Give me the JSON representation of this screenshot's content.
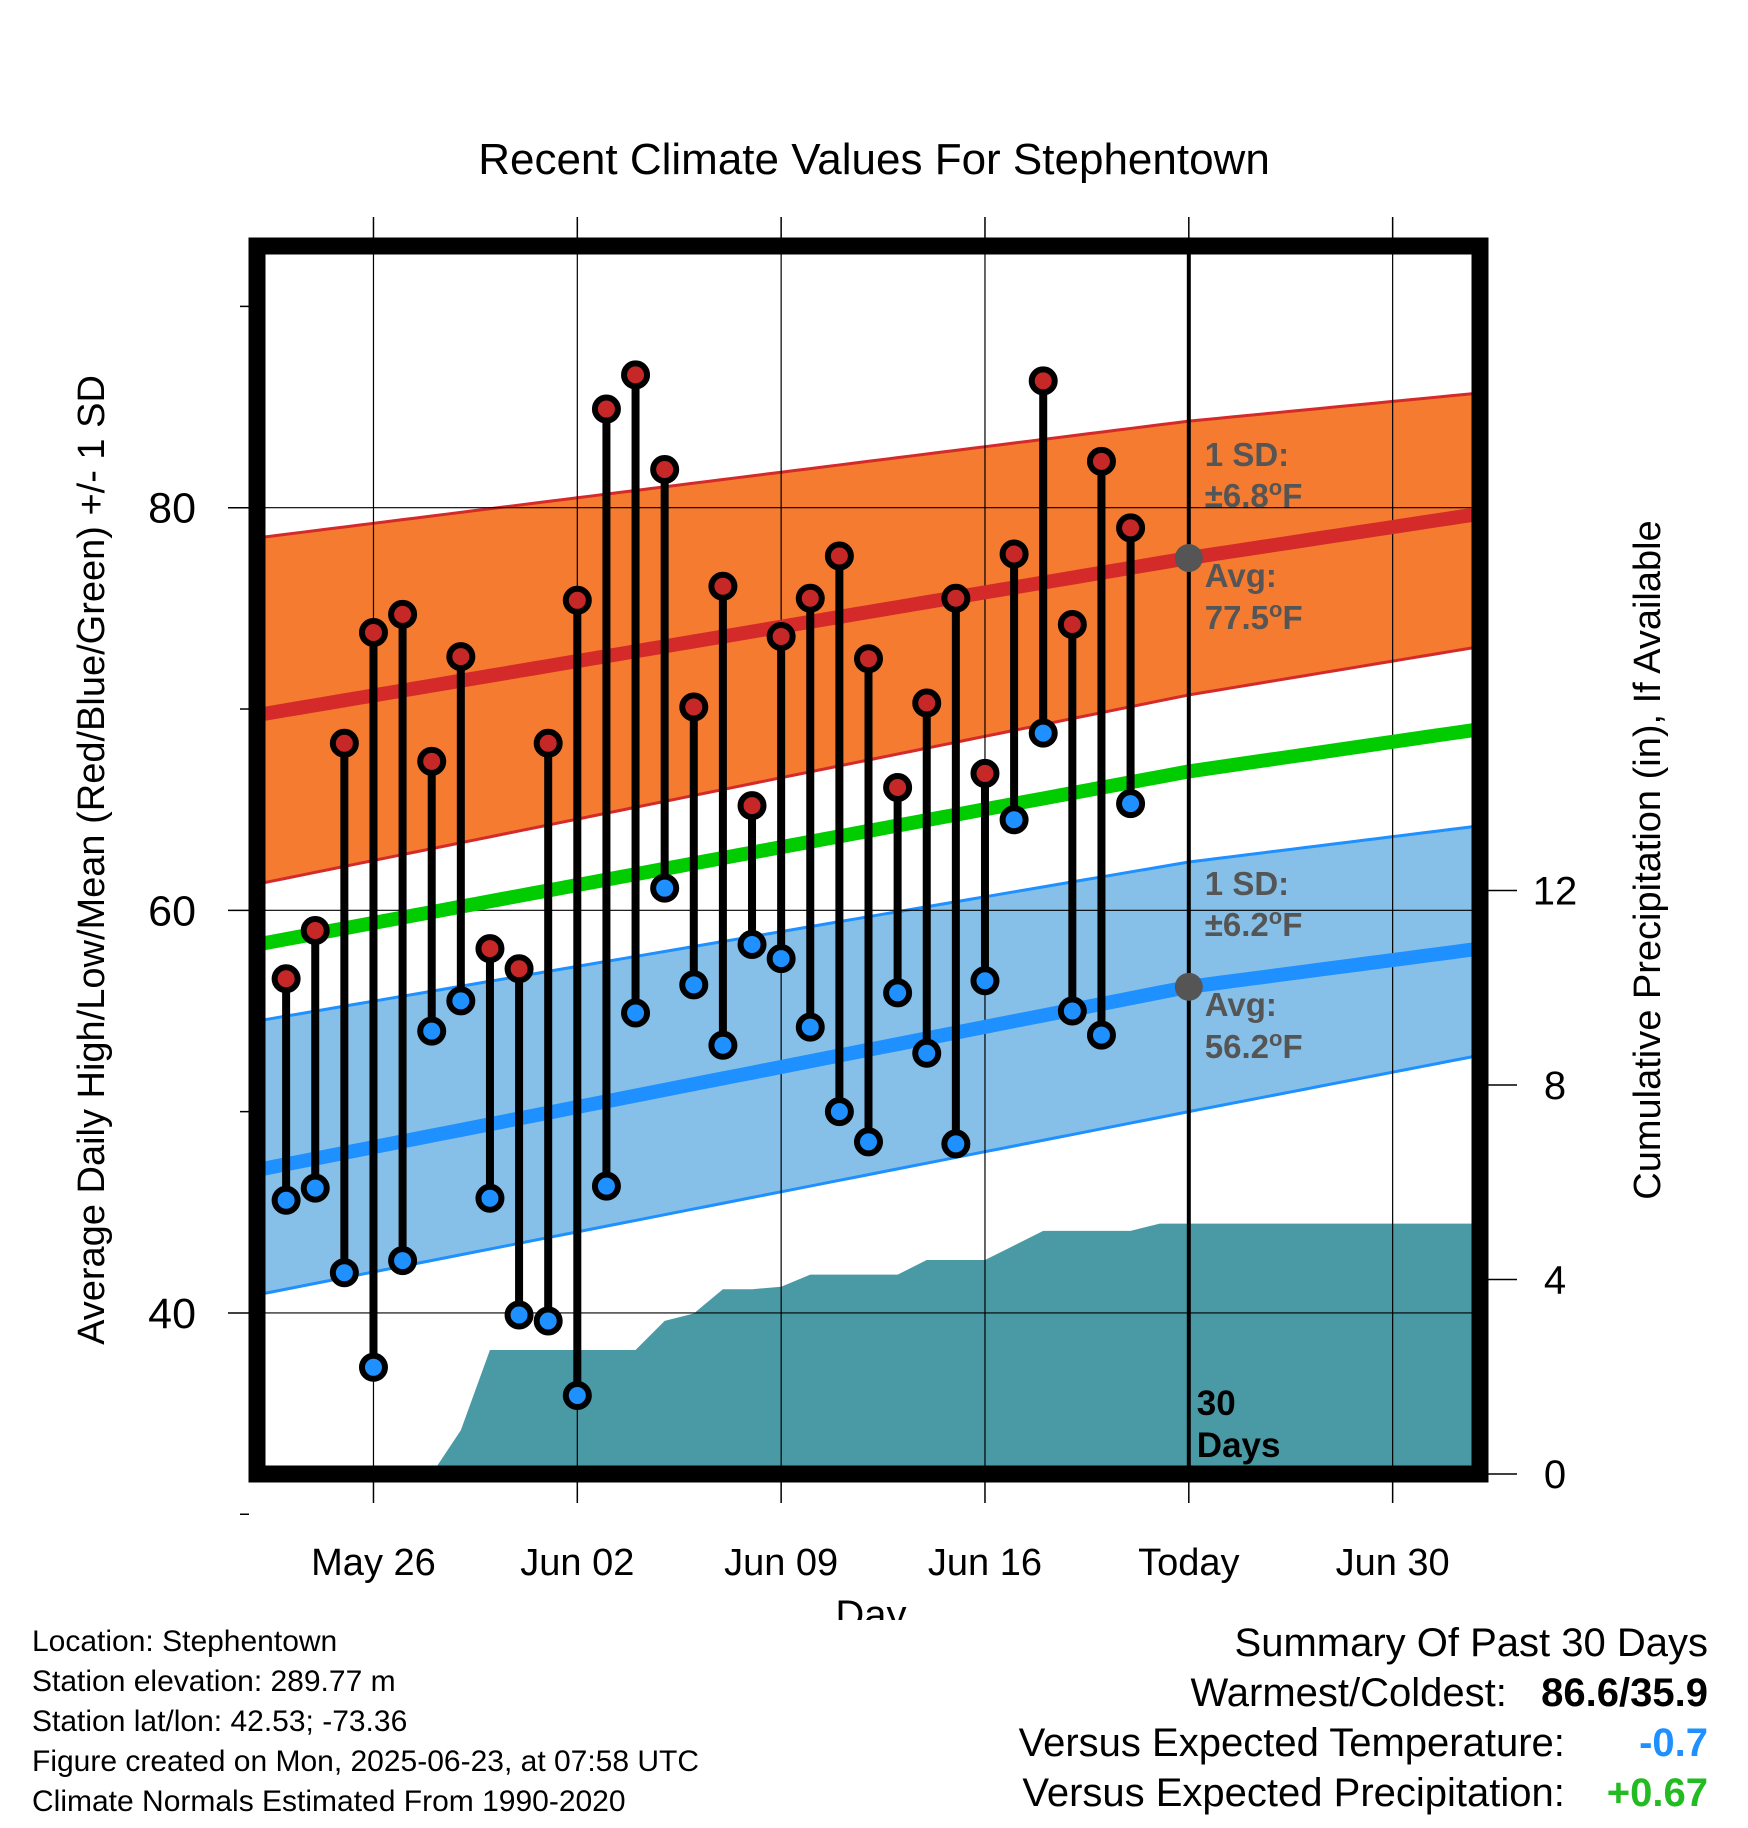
{
  "chart_data": {
    "type": "line",
    "title": "Recent Climate Values For Stephentown",
    "xlabel": "Day",
    "ylabel": "Average Daily High/Low/Mean (Red/Blue/Green) +/- 1 SD",
    "y2label": "Cumulative Precipitation (in), If Available",
    "ylim": [
      32,
      93
    ],
    "y2lim": [
      0,
      30
    ],
    "xlim": [
      "2025-05-22",
      "2025-07-03"
    ],
    "x_ticks": [
      {
        "date": "2025-05-26",
        "label": "May 26"
      },
      {
        "date": "2025-06-02",
        "label": "Jun 02"
      },
      {
        "date": "2025-06-09",
        "label": "Jun 09"
      },
      {
        "date": "2025-06-16",
        "label": "Jun 16"
      },
      {
        "date": "2025-06-23",
        "label": "Today"
      },
      {
        "date": "2025-06-30",
        "label": "Jun 30"
      }
    ],
    "y_ticks": [
      {
        "value": 40,
        "label": "40"
      },
      {
        "value": 60,
        "label": "60"
      },
      {
        "value": 80,
        "label": "80"
      }
    ],
    "y_minor_ticks": [
      30,
      50,
      70,
      90
    ],
    "y2_ticks": [
      {
        "value": 0,
        "label": "0"
      },
      {
        "value": 4,
        "label": "4"
      },
      {
        "value": 8,
        "label": "8"
      },
      {
        "value": 12,
        "label": "12"
      }
    ],
    "grid": true,
    "normals": {
      "dates": [
        "2025-05-22",
        "2025-06-23",
        "2025-07-03"
      ],
      "high_mean": [
        69.7,
        77.5,
        79.7
      ],
      "high_upper": [
        78.5,
        84.3,
        85.7
      ],
      "high_lower": [
        61.3,
        70.7,
        73.1
      ],
      "low_mean": [
        47.1,
        56.2,
        58.1
      ],
      "low_upper": [
        54.5,
        62.4,
        64.2
      ],
      "low_lower": [
        40.9,
        50.0,
        52.8
      ],
      "daily_mean": [
        58.3,
        66.9,
        69.0
      ]
    },
    "series": [
      {
        "name": "High",
        "dates": [
          "2025-05-23",
          "2025-05-24",
          "2025-05-25",
          "2025-05-26",
          "2025-05-27",
          "2025-05-28",
          "2025-05-29",
          "2025-05-30",
          "2025-05-31",
          "2025-06-01",
          "2025-06-02",
          "2025-06-03",
          "2025-06-04",
          "2025-06-05",
          "2025-06-06",
          "2025-06-07",
          "2025-06-08",
          "2025-06-09",
          "2025-06-10",
          "2025-06-11",
          "2025-06-12",
          "2025-06-13",
          "2025-06-14",
          "2025-06-15",
          "2025-06-16",
          "2025-06-17",
          "2025-06-18",
          "2025-06-19",
          "2025-06-20",
          "2025-06-21",
          "2025-06-22"
        ],
        "values": [
          56.6,
          59.0,
          68.3,
          73.8,
          74.7,
          67.4,
          72.6,
          58.1,
          57.1,
          68.3,
          75.4,
          84.9,
          86.6,
          81.9,
          70.1,
          76.1,
          65.2,
          73.6,
          75.5,
          77.6,
          72.5,
          66.1,
          70.3,
          75.5,
          66.8,
          77.7,
          86.3,
          74.2,
          82.3,
          79.0,
          null
        ],
        "color": "#c62828"
      },
      {
        "name": "Low",
        "dates": [
          "2025-05-23",
          "2025-05-24",
          "2025-05-25",
          "2025-05-26",
          "2025-05-27",
          "2025-05-28",
          "2025-05-29",
          "2025-05-30",
          "2025-05-31",
          "2025-06-01",
          "2025-06-02",
          "2025-06-03",
          "2025-06-04",
          "2025-06-05",
          "2025-06-06",
          "2025-06-07",
          "2025-06-08",
          "2025-06-09",
          "2025-06-10",
          "2025-06-11",
          "2025-06-12",
          "2025-06-13",
          "2025-06-14",
          "2025-06-15",
          "2025-06-16",
          "2025-06-17",
          "2025-06-18",
          "2025-06-19",
          "2025-06-20",
          "2025-06-21",
          "2025-06-22"
        ],
        "values": [
          45.6,
          46.2,
          42.0,
          37.3,
          42.6,
          54.0,
          55.5,
          45.7,
          39.9,
          39.6,
          35.9,
          46.3,
          54.9,
          61.1,
          56.3,
          53.3,
          58.3,
          57.6,
          54.2,
          50.0,
          48.5,
          55.9,
          52.9,
          48.4,
          56.5,
          64.5,
          68.8,
          55.0,
          53.8,
          65.3,
          null
        ],
        "color": "#1e90ff"
      }
    ],
    "precipitation": {
      "name": "Cumulative Precipitation",
      "dates": [
        "2025-05-22",
        "2025-05-28",
        "2025-05-29",
        "2025-05-30",
        "2025-05-31",
        "2025-06-01",
        "2025-06-02",
        "2025-06-03",
        "2025-06-04",
        "2025-06-05",
        "2025-06-06",
        "2025-06-07",
        "2025-06-08",
        "2025-06-09",
        "2025-06-10",
        "2025-06-11",
        "2025-06-12",
        "2025-06-13",
        "2025-06-14",
        "2025-06-15",
        "2025-06-16",
        "2025-06-17",
        "2025-06-18",
        "2025-06-19",
        "2025-06-20",
        "2025-06-21",
        "2025-06-22",
        "2025-07-03"
      ],
      "values": [
        0,
        0,
        0.9,
        2.55,
        2.55,
        2.55,
        2.55,
        2.55,
        2.55,
        3.15,
        3.3,
        3.8,
        3.8,
        3.85,
        4.1,
        4.1,
        4.1,
        4.1,
        4.4,
        4.4,
        4.4,
        4.7,
        5.0,
        5.0,
        5.0,
        5.0,
        5.15,
        5.15
      ],
      "color": "#4a9aa5"
    },
    "annotations": {
      "high_sd_label": "1 SD:",
      "high_sd_value": "±6.8",
      "high_avg_label": "Avg:",
      "high_avg_value": "77.5",
      "low_sd_label": "1 SD:",
      "low_sd_value": "±6.2",
      "low_avg_label": "Avg:",
      "low_avg_value": "56.2",
      "degree_mark": "o",
      "unit": "F",
      "days_line1": "30",
      "days_line2": "Days"
    },
    "colors": {
      "high_band": "#f47b2f",
      "high_line": "#d42a2a",
      "low_band": "#86c0e8",
      "low_line": "#1e90ff",
      "mean_line": "#00cc00",
      "precip": "#4a9aa5",
      "annotation_text": "#555555",
      "marker_avg": "#555555"
    }
  },
  "footer": {
    "location": "Location: Stephentown",
    "elevation": "Station elevation: 289.77 m",
    "latlon": "Station lat/lon: 42.53; -73.36",
    "created": "Figure created on Mon, 2025-06-23, at 07:58 UTC",
    "normals": "Climate Normals Estimated From 1990-2020"
  },
  "summary": {
    "title": "Summary Of Past 30 Days",
    "warm_cold_label": "Warmest/Coldest:",
    "warm_cold_value": "86.6/35.9",
    "temp_label": "Versus Expected Temperature:",
    "temp_value": "-0.7",
    "temp_color": "#1e90ff",
    "precip_label": "Versus Expected Precipitation:",
    "precip_value": "+0.67",
    "precip_color": "#22bb22"
  }
}
